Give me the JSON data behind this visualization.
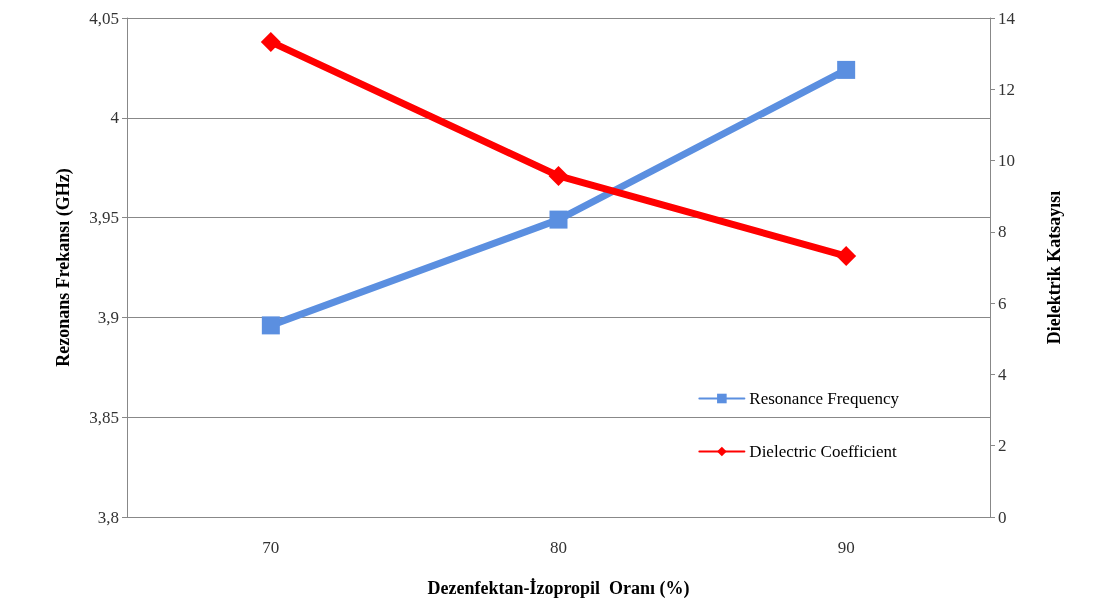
{
  "chart_data": {
    "type": "line",
    "xlabel": "Dezenfektan-İzopropil  Oranı (%)",
    "ylabel": "Rezonans Frekansı (GHz)",
    "y2label": "Dielektrik Katsayısı",
    "categories": [
      "70",
      "80",
      "90"
    ],
    "series": [
      {
        "name": "Resonance Frequency",
        "color": "#5b8fe0",
        "marker": "square",
        "values": [
          3.896,
          3.949,
          4.024
        ]
      },
      {
        "name": "Dielectric Coefficient",
        "color": "#ff0000",
        "marker": "diamond",
        "axis": "y2",
        "values": [
          13.33,
          9.57,
          7.32
        ]
      }
    ],
    "ylim": [
      3.8,
      4.05
    ],
    "yticks": [
      {
        "value": 3.8,
        "label": "3,8"
      },
      {
        "value": 3.85,
        "label": "3,85"
      },
      {
        "value": 3.9,
        "label": "3,9"
      },
      {
        "value": 3.95,
        "label": "3,95"
      },
      4,
      {
        "value": 4.05,
        "label": "4,05"
      }
    ],
    "y2lim": [
      0,
      14
    ],
    "y2ticks": [
      0,
      2,
      4,
      6,
      8,
      10,
      12,
      14
    ],
    "grid": "y",
    "legend": "bottom right"
  }
}
